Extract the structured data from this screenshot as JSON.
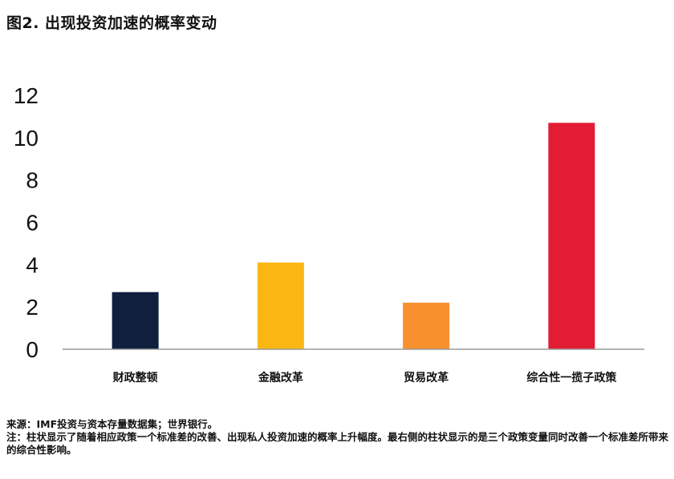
{
  "title": "图2. 出现投资加速的概率变动",
  "chart_data": {
    "type": "bar",
    "categories": [
      "财政整顿",
      "金融改革",
      "贸易改革",
      "综合性一揽子政策"
    ],
    "values": [
      2.7,
      4.1,
      2.2,
      10.7
    ],
    "colors": [
      "#0f1f3d",
      "#fdb714",
      "#f7902d",
      "#e21c34"
    ],
    "ylim": [
      0,
      12
    ],
    "yticks": [
      0,
      2,
      4,
      6,
      8,
      10,
      12
    ],
    "ytick_labels": [
      "0",
      "2",
      "4",
      "6",
      "8",
      "10",
      "12"
    ],
    "grid": false,
    "legend": "none",
    "xlabel": "",
    "ylabel": ""
  },
  "notes": {
    "source": "来源：IMF投资与资本存量数据集；世界银行。",
    "note": "注：柱状显示了随着相应政策一个标准差的改善、出现私人投资加速的概率上升幅度。最右侧的柱状显示的是三个政策变量同时改善一个标准差所带来的综合性影响。"
  }
}
